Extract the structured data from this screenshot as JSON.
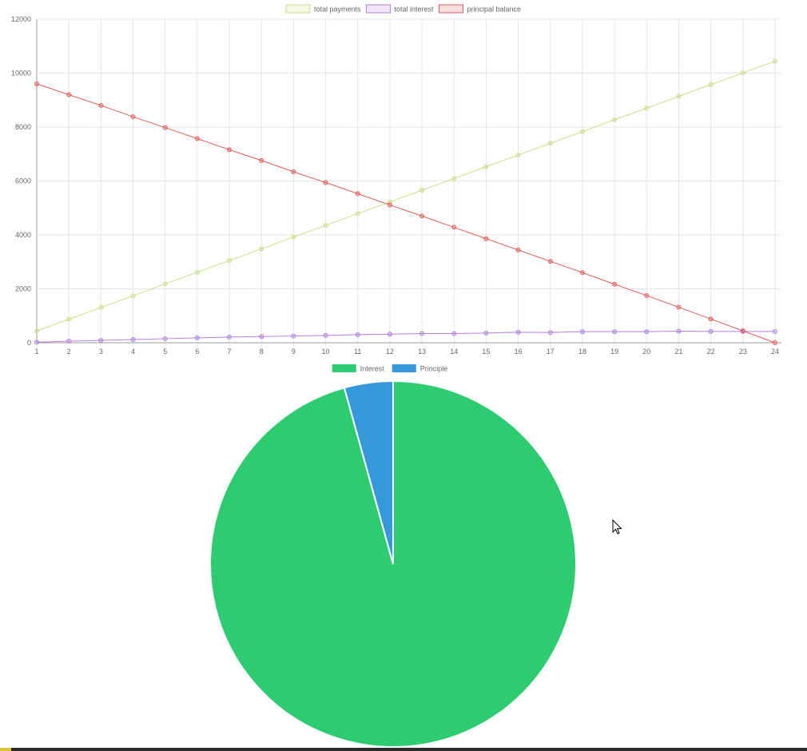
{
  "chart_data": [
    {
      "type": "line",
      "x": [
        "1",
        "2",
        "3",
        "4",
        "5",
        "6",
        "7",
        "8",
        "9",
        "10",
        "11",
        "12",
        "13",
        "14",
        "15",
        "16",
        "17",
        "18",
        "19",
        "20",
        "21",
        "22",
        "23",
        "24"
      ],
      "ylim": [
        0,
        12000
      ],
      "yticks": [
        0,
        2000,
        4000,
        6000,
        8000,
        10000,
        12000
      ],
      "grid": true,
      "legend_position": "top",
      "series": [
        {
          "name": "total payments",
          "color": "#c8e08c",
          "values": [
            440,
            870,
            1310,
            1740,
            2180,
            2610,
            3050,
            3480,
            3920,
            4350,
            4790,
            5220,
            5660,
            6090,
            6530,
            6960,
            7400,
            7830,
            8270,
            8700,
            9140,
            9570,
            10010,
            10440
          ]
        },
        {
          "name": "total interest",
          "color": "#b57ee0",
          "values": [
            20,
            60,
            90,
            120,
            150,
            180,
            210,
            230,
            250,
            270,
            300,
            320,
            340,
            340,
            360,
            390,
            380,
            410,
            410,
            410,
            430,
            420,
            420,
            420
          ]
        },
        {
          "name": "principal balance",
          "color": "#e05c5c",
          "values": [
            9600,
            9200,
            8800,
            8380,
            7980,
            7570,
            7160,
            6760,
            6340,
            5940,
            5530,
            5110,
            4700,
            4280,
            3860,
            3440,
            3020,
            2600,
            2170,
            1750,
            1320,
            880,
            440,
            0
          ]
        }
      ]
    },
    {
      "type": "pie",
      "legend_position": "top",
      "slices": [
        {
          "label": "Interest",
          "value": 95.7,
          "color": "#2ecc71"
        },
        {
          "label": "Principle",
          "value": 4.3,
          "color": "#3498db"
        }
      ]
    }
  ]
}
